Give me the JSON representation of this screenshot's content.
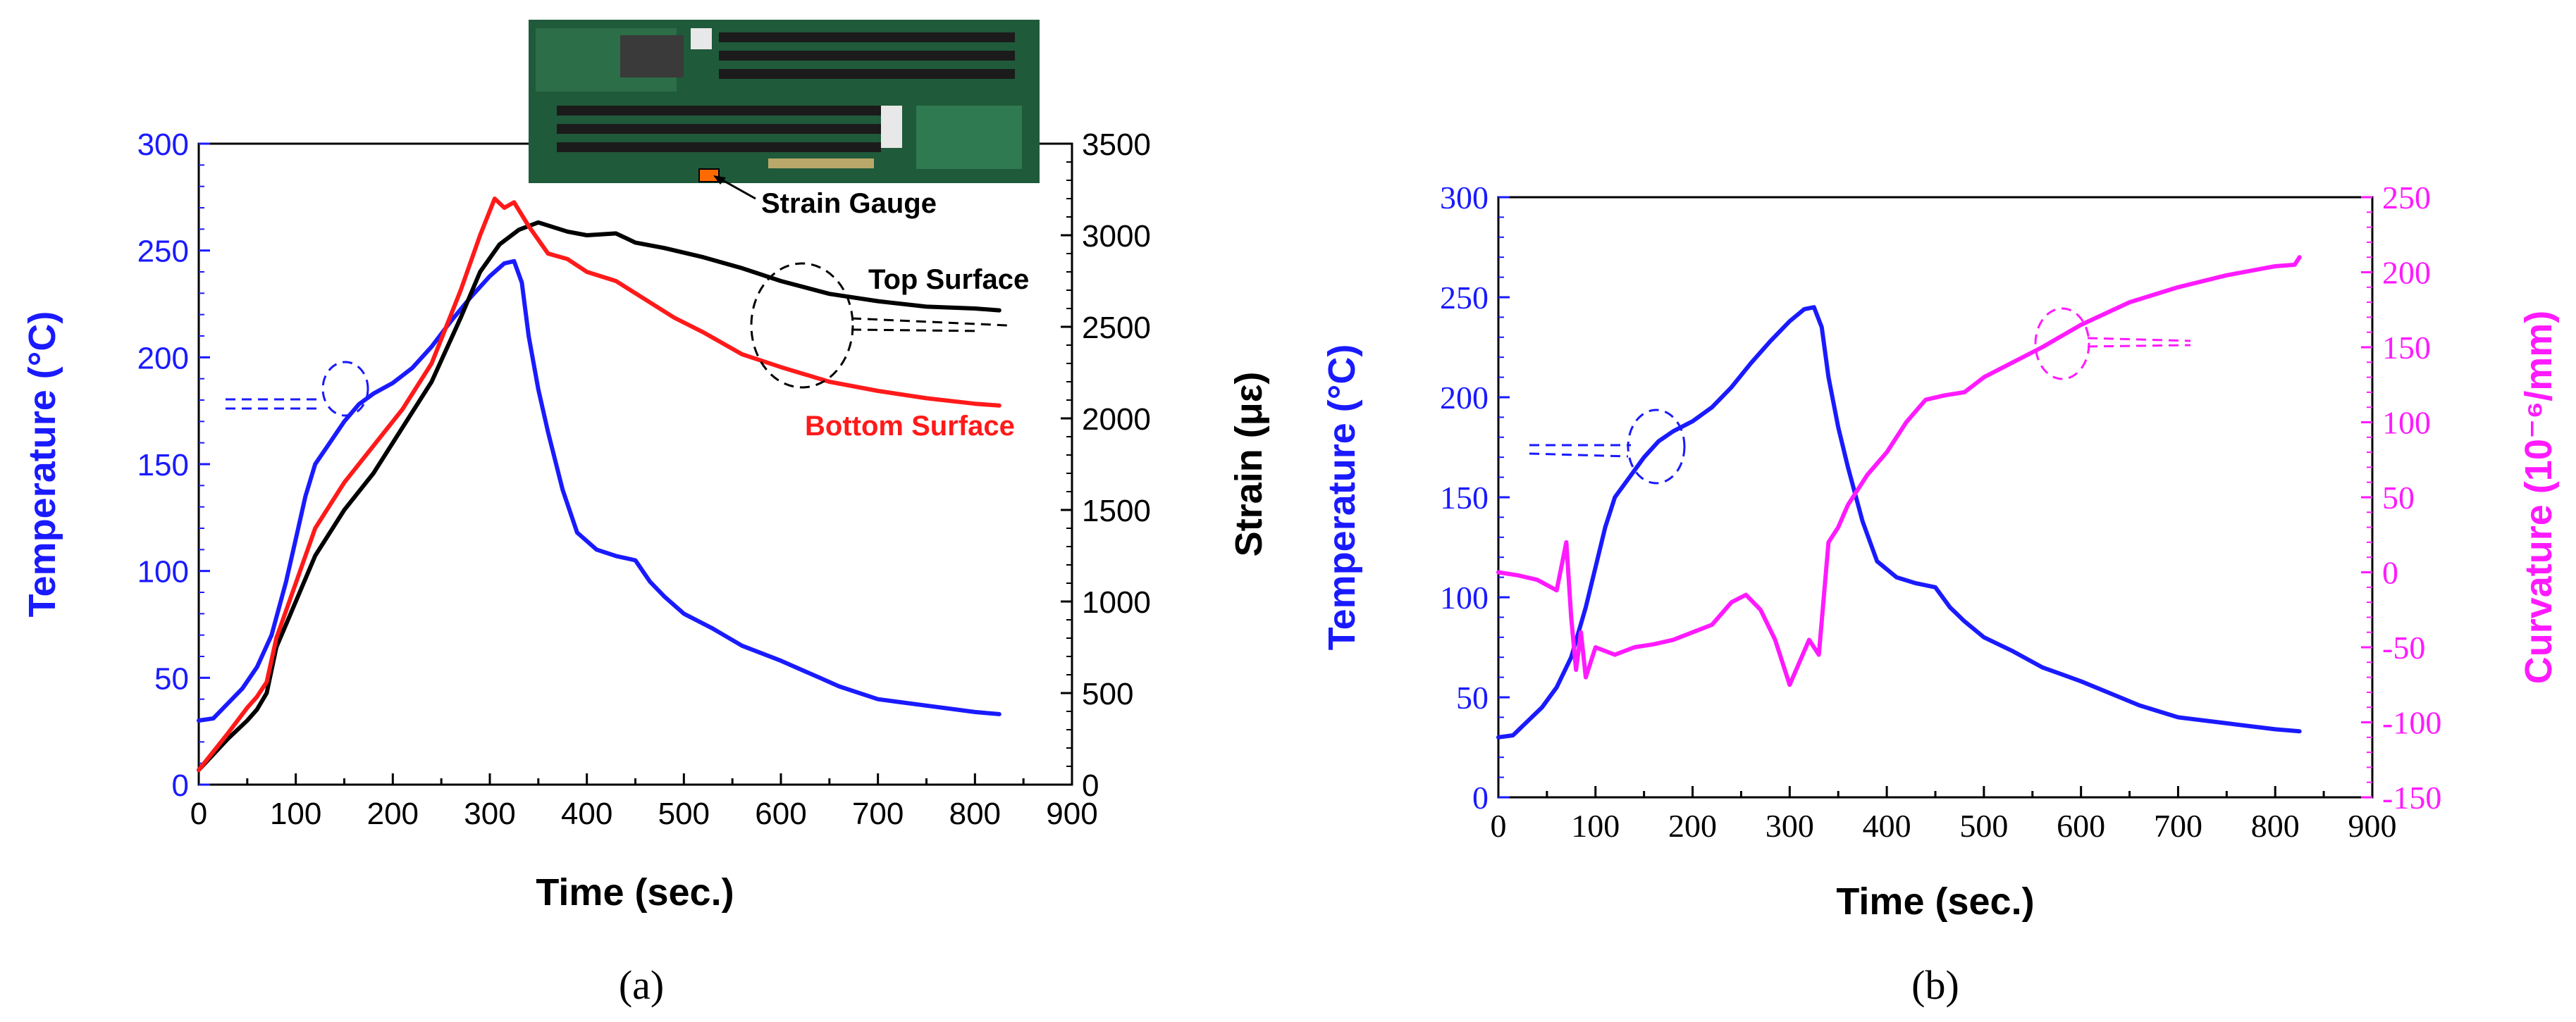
{
  "chart_data": [
    {
      "panel": "a",
      "type": "line",
      "xlabel": "Time (sec.)",
      "ylabel_left": "Temperature (°C)",
      "ylabel_right": "Strain (με)",
      "xlim": [
        0,
        900
      ],
      "ylim_left": [
        0,
        300
      ],
      "ylim_right": [
        0,
        3500
      ],
      "x_ticks": [
        0,
        100,
        200,
        300,
        400,
        500,
        600,
        700,
        800,
        900
      ],
      "y_ticks_left": [
        0,
        50,
        100,
        150,
        200,
        250,
        300
      ],
      "y_ticks_right": [
        0,
        500,
        1000,
        1500,
        2000,
        2500,
        3000,
        3500
      ],
      "inset_photo_caption": "Strain Gauge",
      "annotations": [
        "Top Surface",
        "Bottom Surface"
      ],
      "series": [
        {
          "name": "Temperature",
          "axis": "left",
          "color": "#1a1aff",
          "x": [
            0,
            15,
            30,
            45,
            60,
            75,
            90,
            100,
            110,
            120,
            135,
            150,
            165,
            180,
            200,
            220,
            240,
            260,
            280,
            300,
            315,
            325,
            333,
            340,
            350,
            360,
            375,
            390,
            410,
            430,
            450,
            465,
            480,
            500,
            530,
            560,
            600,
            640,
            660,
            700,
            750,
            800,
            825
          ],
          "y": [
            30,
            31,
            38,
            45,
            55,
            70,
            95,
            115,
            135,
            150,
            160,
            170,
            178,
            183,
            188,
            195,
            205,
            217,
            228,
            238,
            244,
            245,
            235,
            210,
            185,
            165,
            138,
            118,
            110,
            107,
            105,
            95,
            88,
            80,
            73,
            65,
            58,
            50,
            46,
            40,
            37,
            34,
            33
          ]
        },
        {
          "name": "Top Surface",
          "axis": "right",
          "color": "#000000",
          "x": [
            0,
            30,
            50,
            60,
            70,
            80,
            100,
            120,
            150,
            180,
            210,
            240,
            270,
            290,
            310,
            330,
            350,
            380,
            400,
            430,
            450,
            480,
            520,
            560,
            600,
            650,
            700,
            750,
            800,
            825
          ],
          "y": [
            80,
            250,
            350,
            410,
            500,
            750,
            1000,
            1250,
            1500,
            1700,
            1950,
            2200,
            2550,
            2800,
            2950,
            3030,
            3070,
            3020,
            3000,
            3010,
            2960,
            2930,
            2880,
            2820,
            2750,
            2680,
            2640,
            2610,
            2600,
            2590
          ]
        },
        {
          "name": "Bottom Surface",
          "axis": "right",
          "color": "#ff1a1a",
          "x": [
            0,
            30,
            50,
            60,
            70,
            80,
            100,
            120,
            150,
            180,
            210,
            240,
            270,
            290,
            305,
            315,
            325,
            340,
            360,
            380,
            400,
            430,
            460,
            490,
            520,
            560,
            600,
            650,
            700,
            750,
            800,
            825
          ],
          "y": [
            80,
            280,
            420,
            480,
            560,
            800,
            1100,
            1400,
            1650,
            1850,
            2050,
            2300,
            2700,
            3000,
            3200,
            3150,
            3180,
            3050,
            2900,
            2870,
            2800,
            2750,
            2650,
            2550,
            2470,
            2350,
            2280,
            2200,
            2150,
            2110,
            2080,
            2070
          ]
        }
      ]
    },
    {
      "panel": "b",
      "type": "line",
      "xlabel": "Time (sec.)",
      "ylabel_left": "Temperature (°C)",
      "ylabel_right": "Curvature (10⁻⁶/mm)",
      "xlim": [
        0,
        900
      ],
      "ylim_left": [
        0,
        300
      ],
      "ylim_right": [
        -150,
        250
      ],
      "x_ticks": [
        0,
        100,
        200,
        300,
        400,
        500,
        600,
        700,
        800,
        900
      ],
      "y_ticks_left": [
        0,
        50,
        100,
        150,
        200,
        250,
        300
      ],
      "y_ticks_right": [
        -150,
        -100,
        -50,
        0,
        50,
        100,
        150,
        200,
        250
      ],
      "series": [
        {
          "name": "Temperature",
          "axis": "left",
          "color": "#1a1aff",
          "x": [
            0,
            15,
            30,
            45,
            60,
            75,
            90,
            100,
            110,
            120,
            135,
            150,
            165,
            180,
            200,
            220,
            240,
            260,
            280,
            300,
            315,
            325,
            333,
            340,
            350,
            360,
            375,
            390,
            410,
            430,
            450,
            465,
            480,
            500,
            530,
            560,
            600,
            640,
            660,
            700,
            750,
            800,
            825
          ],
          "y": [
            30,
            31,
            38,
            45,
            55,
            70,
            95,
            115,
            135,
            150,
            160,
            170,
            178,
            183,
            188,
            195,
            205,
            217,
            228,
            238,
            244,
            245,
            235,
            210,
            185,
            165,
            138,
            118,
            110,
            107,
            105,
            95,
            88,
            80,
            73,
            65,
            58,
            50,
            46,
            40,
            37,
            34,
            33
          ]
        },
        {
          "name": "Curvature",
          "axis": "right",
          "color": "#ff1aff",
          "x": [
            0,
            20,
            40,
            60,
            70,
            75,
            80,
            85,
            90,
            100,
            120,
            140,
            160,
            180,
            200,
            220,
            240,
            255,
            270,
            285,
            300,
            310,
            320,
            330,
            340,
            350,
            360,
            370,
            380,
            400,
            420,
            440,
            460,
            480,
            500,
            530,
            560,
            600,
            650,
            700,
            750,
            800,
            820,
            825
          ],
          "y": [
            0,
            -2,
            -5,
            -12,
            20,
            -30,
            -65,
            -40,
            -70,
            -50,
            -55,
            -50,
            -48,
            -45,
            -40,
            -35,
            -20,
            -15,
            -25,
            -45,
            -75,
            -60,
            -45,
            -55,
            20,
            30,
            45,
            55,
            65,
            80,
            100,
            115,
            118,
            120,
            130,
            140,
            150,
            165,
            180,
            190,
            198,
            204,
            205,
            210
          ]
        }
      ]
    }
  ],
  "captions": {
    "a": "(a)",
    "b": "(b)"
  }
}
